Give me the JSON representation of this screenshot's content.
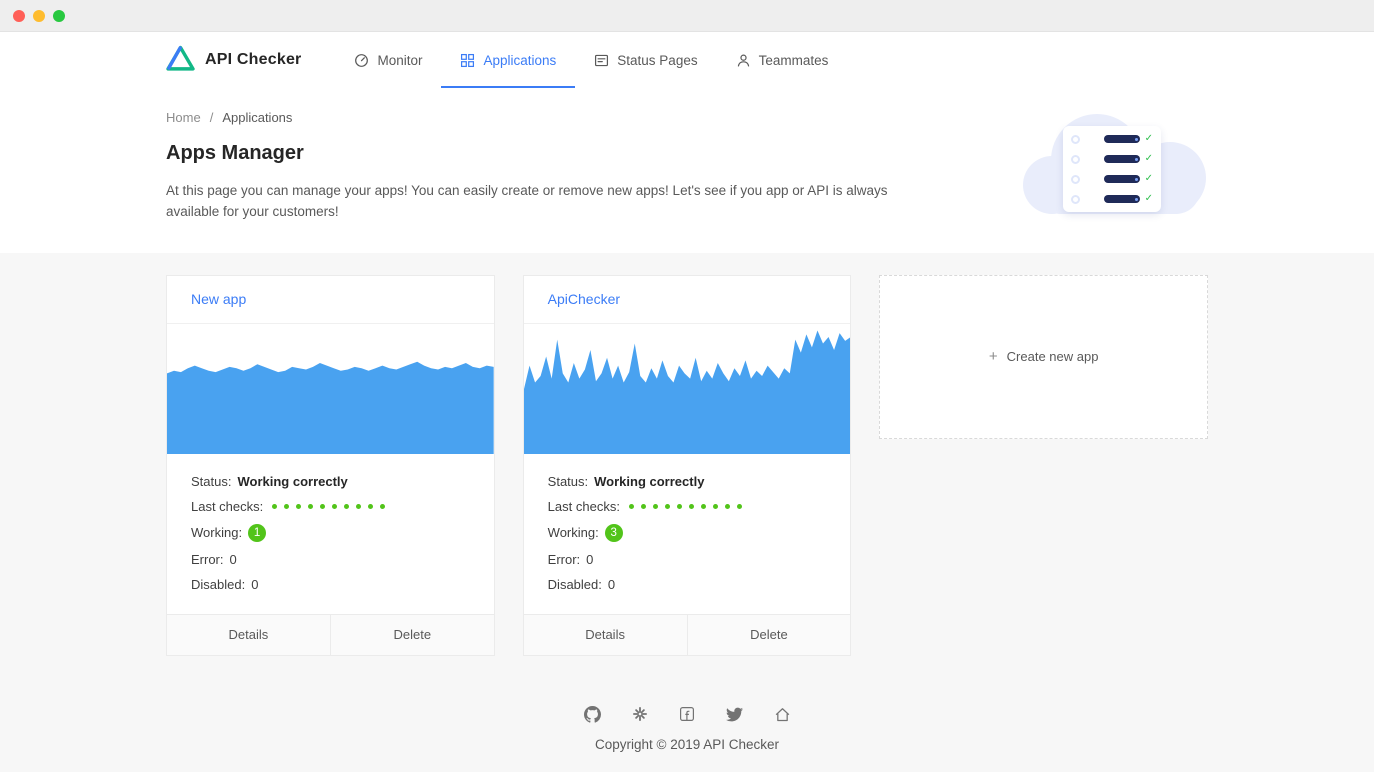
{
  "colors": {
    "accent": "#3b7cf6",
    "chart": "#49a2f0",
    "success": "#52c41a"
  },
  "navbar": {
    "brand": "API Checker",
    "items": [
      {
        "label": "Monitor",
        "active": false
      },
      {
        "label": "Applications",
        "active": true
      },
      {
        "label": "Status Pages",
        "active": false
      },
      {
        "label": "Teammates",
        "active": false
      }
    ]
  },
  "breadcrumb": {
    "home": "Home",
    "separator": "/",
    "current": "Applications"
  },
  "hero": {
    "title": "Apps Manager",
    "description": "At this page you can manage your apps! You can easily create or remove new apps! Let's see if you app or API is always available for your customers!"
  },
  "labels": {
    "status": "Status:",
    "last_checks": "Last checks:",
    "working": "Working:",
    "error": "Error:",
    "disabled": "Disabled:"
  },
  "actions": {
    "details": "Details",
    "delete": "Delete"
  },
  "apps": [
    {
      "name": "New app",
      "status": "Working correctly",
      "last_checks": 10,
      "working": "1",
      "error": "0",
      "disabled": "0",
      "chart": [
        0.62,
        0.64,
        0.63,
        0.66,
        0.68,
        0.66,
        0.64,
        0.63,
        0.65,
        0.67,
        0.66,
        0.64,
        0.66,
        0.69,
        0.67,
        0.65,
        0.63,
        0.64,
        0.67,
        0.66,
        0.65,
        0.67,
        0.7,
        0.68,
        0.66,
        0.64,
        0.65,
        0.67,
        0.66,
        0.64,
        0.66,
        0.68,
        0.66,
        0.65,
        0.67,
        0.69,
        0.71,
        0.68,
        0.66,
        0.65,
        0.67,
        0.66,
        0.68,
        0.7,
        0.67,
        0.66,
        0.68,
        0.67
      ]
    },
    {
      "name": "ApiChecker",
      "status": "Working correctly",
      "last_checks": 10,
      "working": "3",
      "error": "0",
      "disabled": "0",
      "chart": [
        0.5,
        0.68,
        0.55,
        0.6,
        0.75,
        0.58,
        0.88,
        0.62,
        0.55,
        0.7,
        0.58,
        0.65,
        0.8,
        0.56,
        0.62,
        0.74,
        0.58,
        0.68,
        0.55,
        0.63,
        0.85,
        0.6,
        0.55,
        0.66,
        0.58,
        0.72,
        0.6,
        0.55,
        0.68,
        0.62,
        0.58,
        0.74,
        0.56,
        0.64,
        0.58,
        0.7,
        0.62,
        0.56,
        0.66,
        0.6,
        0.72,
        0.58,
        0.64,
        0.6,
        0.68,
        0.63,
        0.58,
        0.66,
        0.62,
        0.88,
        0.78,
        0.92,
        0.82,
        0.95,
        0.85,
        0.9,
        0.8,
        0.93,
        0.87,
        0.9
      ]
    }
  ],
  "create_card": {
    "plus": "+",
    "label": "Create new app"
  },
  "footer": {
    "icons": [
      "github-icon",
      "slack-icon",
      "facebook-icon",
      "twitter-icon",
      "home-icon"
    ],
    "copyright": "Copyright © 2019 API Checker"
  }
}
